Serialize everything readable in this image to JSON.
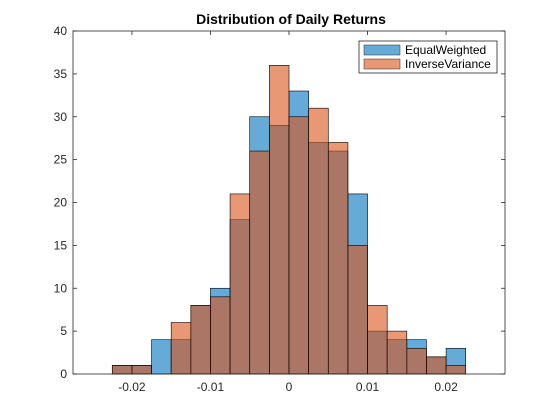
{
  "chart_data": {
    "type": "bar",
    "title": "Distribution of Daily Returns",
    "xlabel": "",
    "ylabel": "",
    "xlim": [
      -0.0275,
      0.0275
    ],
    "ylim": [
      0,
      40
    ],
    "xticks": [
      -0.02,
      -0.01,
      0,
      0.01,
      0.02
    ],
    "xtick_labels": [
      "-0.02",
      "-0.01",
      "0",
      "0.01",
      "0.02"
    ],
    "yticks": [
      0,
      5,
      10,
      15,
      20,
      25,
      30,
      35,
      40
    ],
    "ytick_labels": [
      "0",
      "5",
      "10",
      "15",
      "20",
      "25",
      "30",
      "35",
      "40"
    ],
    "grid": false,
    "legend_position": "top-right",
    "bin_edges": [
      -0.0225,
      -0.02,
      -0.0175,
      -0.015,
      -0.0125,
      -0.01,
      -0.0075,
      -0.005,
      -0.0025,
      0,
      0.0025,
      0.005,
      0.0075,
      0.01,
      0.0125,
      0.015,
      0.0175,
      0.02,
      0.0225
    ],
    "series": [
      {
        "name": "EqualWeighted",
        "color": "#0072BD",
        "values": [
          1,
          1,
          4,
          4,
          8,
          10,
          18,
          30,
          29,
          33,
          27,
          26,
          21,
          5,
          4,
          4,
          2,
          3
        ]
      },
      {
        "name": "InverseVariance",
        "color": "#D95319",
        "values": [
          1,
          1,
          0,
          6,
          8,
          9,
          21,
          26,
          36,
          30,
          31,
          27,
          15,
          8,
          5,
          3,
          2,
          1
        ]
      }
    ]
  }
}
